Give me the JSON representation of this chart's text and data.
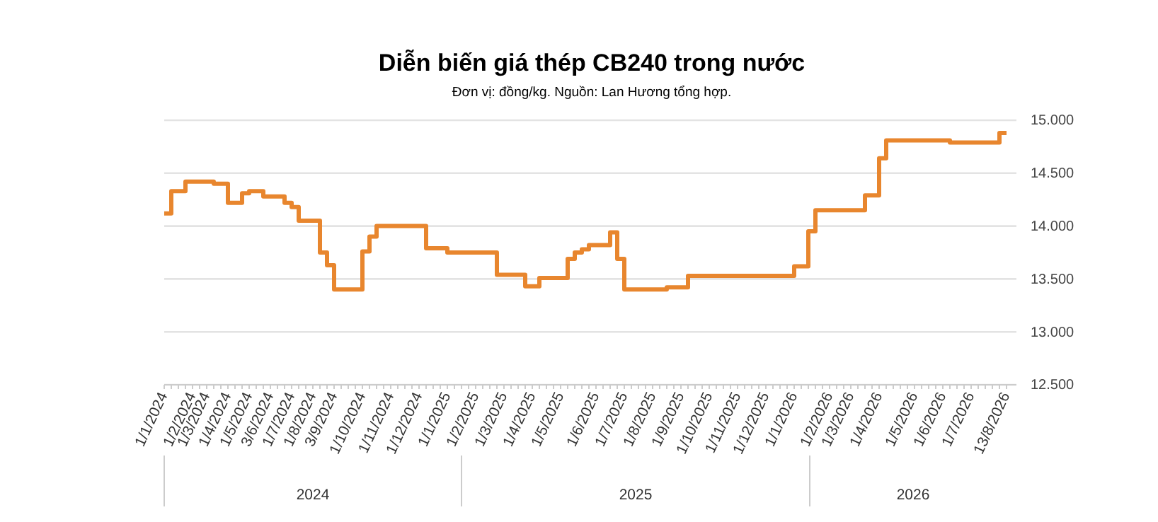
{
  "chart_data": {
    "type": "step",
    "title": "Diễn biến giá thép CB240 trong nước",
    "subtitle": "Đơn vị: đồng/kg. Nguồn: Lan Hương tổng hợp.",
    "categories": [
      "1/1/2024",
      null,
      null,
      null,
      "1/2/2024",
      null,
      "1/3/2024",
      null,
      null,
      "1/4/2024",
      null,
      null,
      "1/5/2024",
      null,
      null,
      "3/6/2024",
      null,
      null,
      "1/7/2024",
      null,
      null,
      "1/8/2024",
      null,
      null,
      "3/9/2024",
      null,
      null,
      null,
      "1/10/2024",
      null,
      null,
      null,
      "1/11/2024",
      null,
      null,
      null,
      "1/12/2024",
      null,
      null,
      null,
      "1/1/2025",
      null,
      null,
      null,
      "1/2/2025",
      null,
      null,
      null,
      "1/3/2025",
      null,
      null,
      null,
      "1/4/2025",
      null,
      null,
      null,
      "1/5/2025",
      null,
      null,
      null,
      null,
      "1/6/2025",
      null,
      null,
      null,
      "1/7/2025",
      null,
      null,
      null,
      "1/8/2025",
      null,
      null,
      null,
      "1/9/2025",
      null,
      null,
      null,
      "1/10/2025",
      null,
      null,
      null,
      "1/11/2025",
      null,
      null,
      null,
      "1/12/2025",
      null,
      null,
      null,
      "1/1/2026",
      null,
      null,
      null,
      null,
      "1/2/2026",
      null,
      null,
      "1/3/2026",
      null,
      null,
      null,
      "1/4/2026",
      null,
      null,
      null,
      null,
      "1/5/2026",
      null,
      null,
      null,
      "1/6/2026",
      null,
      null,
      null,
      "1/7/2026",
      null,
      null,
      null,
      null,
      "13/8/2026"
    ],
    "series": [
      {
        "color": "#e8862e",
        "values": [
          14120,
          14330,
          14330,
          14420,
          14420,
          14420,
          14420,
          14400,
          14400,
          14220,
          14220,
          14310,
          14330,
          14330,
          14280,
          14280,
          14280,
          14220,
          14180,
          14050,
          14050,
          14050,
          13750,
          13630,
          13400,
          13400,
          13400,
          13400,
          13760,
          13900,
          14000,
          14000,
          14000,
          14000,
          14000,
          14000,
          14000,
          13790,
          13790,
          13790,
          13750,
          13750,
          13750,
          13750,
          13750,
          13750,
          13750,
          13540,
          13540,
          13540,
          13540,
          13430,
          13430,
          13510,
          13510,
          13510,
          13510,
          13690,
          13750,
          13780,
          13820,
          13820,
          13820,
          13940,
          13690,
          13400,
          13400,
          13400,
          13400,
          13400,
          13400,
          13420,
          13420,
          13420,
          13530,
          13530,
          13530,
          13530,
          13530,
          13530,
          13530,
          13530,
          13530,
          13530,
          13530,
          13530,
          13530,
          13530,
          13530,
          13620,
          13620,
          13950,
          14150,
          14150,
          14150,
          14150,
          14150,
          14150,
          14150,
          14290,
          14290,
          14640,
          14810,
          14810,
          14810,
          14810,
          14810,
          14810,
          14810,
          14810,
          14810,
          14790,
          14790,
          14790,
          14790,
          14790,
          14790,
          14790,
          14880,
          14880
        ]
      }
    ],
    "ylim": [
      12500,
      15000
    ],
    "yticks": [
      {
        "value": 12500,
        "label": "12.500"
      },
      {
        "value": 13000,
        "label": "13.000"
      },
      {
        "value": 13500,
        "label": "13.500"
      },
      {
        "value": 14000,
        "label": "14.000"
      },
      {
        "value": 14500,
        "label": "14.500"
      },
      {
        "value": 15000,
        "label": "15.000"
      }
    ],
    "grid": "y",
    "line_style": "solid",
    "annotations": [
      "2024",
      "2025",
      "2026"
    ]
  }
}
